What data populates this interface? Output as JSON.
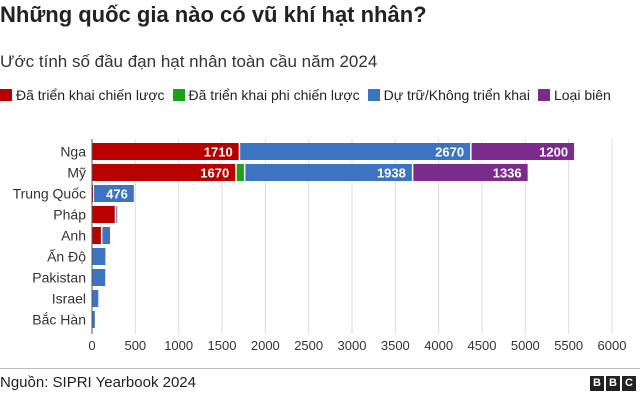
{
  "header": {
    "title": "Những quốc gia nào có vũ khí hạt nhân?",
    "subtitle": "Ước tính số đầu đạn hạt nhân toàn cầu năm 2024"
  },
  "footer": {
    "source": "Nguồn: SIPRI Yearbook 2024",
    "logo_letters": [
      "B",
      "B",
      "C"
    ]
  },
  "chart_data": {
    "type": "bar",
    "orientation": "horizontal",
    "stacked": true,
    "categories": [
      "Nga",
      "Mỹ",
      "Trung Quốc",
      "Pháp",
      "Anh",
      "Ấn Độ",
      "Pakistan",
      "Israel",
      "Bắc Hàn"
    ],
    "series": [
      {
        "name": "Đã triển khai chiến lược",
        "color": "#b80000",
        "values": [
          1710,
          1670,
          24,
          280,
          120,
          0,
          0,
          0,
          0
        ]
      },
      {
        "name": "Đã triển khai phi chiến lược",
        "color": "#1aa31a",
        "values": [
          0,
          100,
          0,
          0,
          0,
          0,
          0,
          0,
          0
        ]
      },
      {
        "name": "Dự trữ/Không triển khai",
        "color": "#3c74c1",
        "values": [
          2670,
          1938,
          476,
          10,
          105,
          172,
          170,
          90,
          50
        ]
      },
      {
        "name": "Loại biên",
        "color": "#7b2b8b",
        "values": [
          1200,
          1336,
          0,
          0,
          0,
          0,
          0,
          0,
          0
        ]
      }
    ],
    "data_labels": [
      {
        "category": "Nga",
        "series": "Đã triển khai chiến lược",
        "text": "1710"
      },
      {
        "category": "Nga",
        "series": "Dự trữ/Không triển khai",
        "text": "2670"
      },
      {
        "category": "Nga",
        "series": "Loại biên",
        "text": "1200"
      },
      {
        "category": "Mỹ",
        "series": "Đã triển khai chiến lược",
        "text": "1670"
      },
      {
        "category": "Mỹ",
        "series": "Dự trữ/Không triển khai",
        "text": "1938"
      },
      {
        "category": "Mỹ",
        "series": "Loại biên",
        "text": "1336"
      },
      {
        "category": "Trung Quốc",
        "series": "Dự trữ/Không triển khai",
        "text": "476"
      }
    ],
    "xlim": [
      0,
      6000
    ],
    "xticks": [
      0,
      500,
      1000,
      1500,
      2000,
      2500,
      3000,
      3500,
      4000,
      4500,
      5000,
      5500,
      6000
    ],
    "grid": true,
    "legend_position": "top"
  }
}
